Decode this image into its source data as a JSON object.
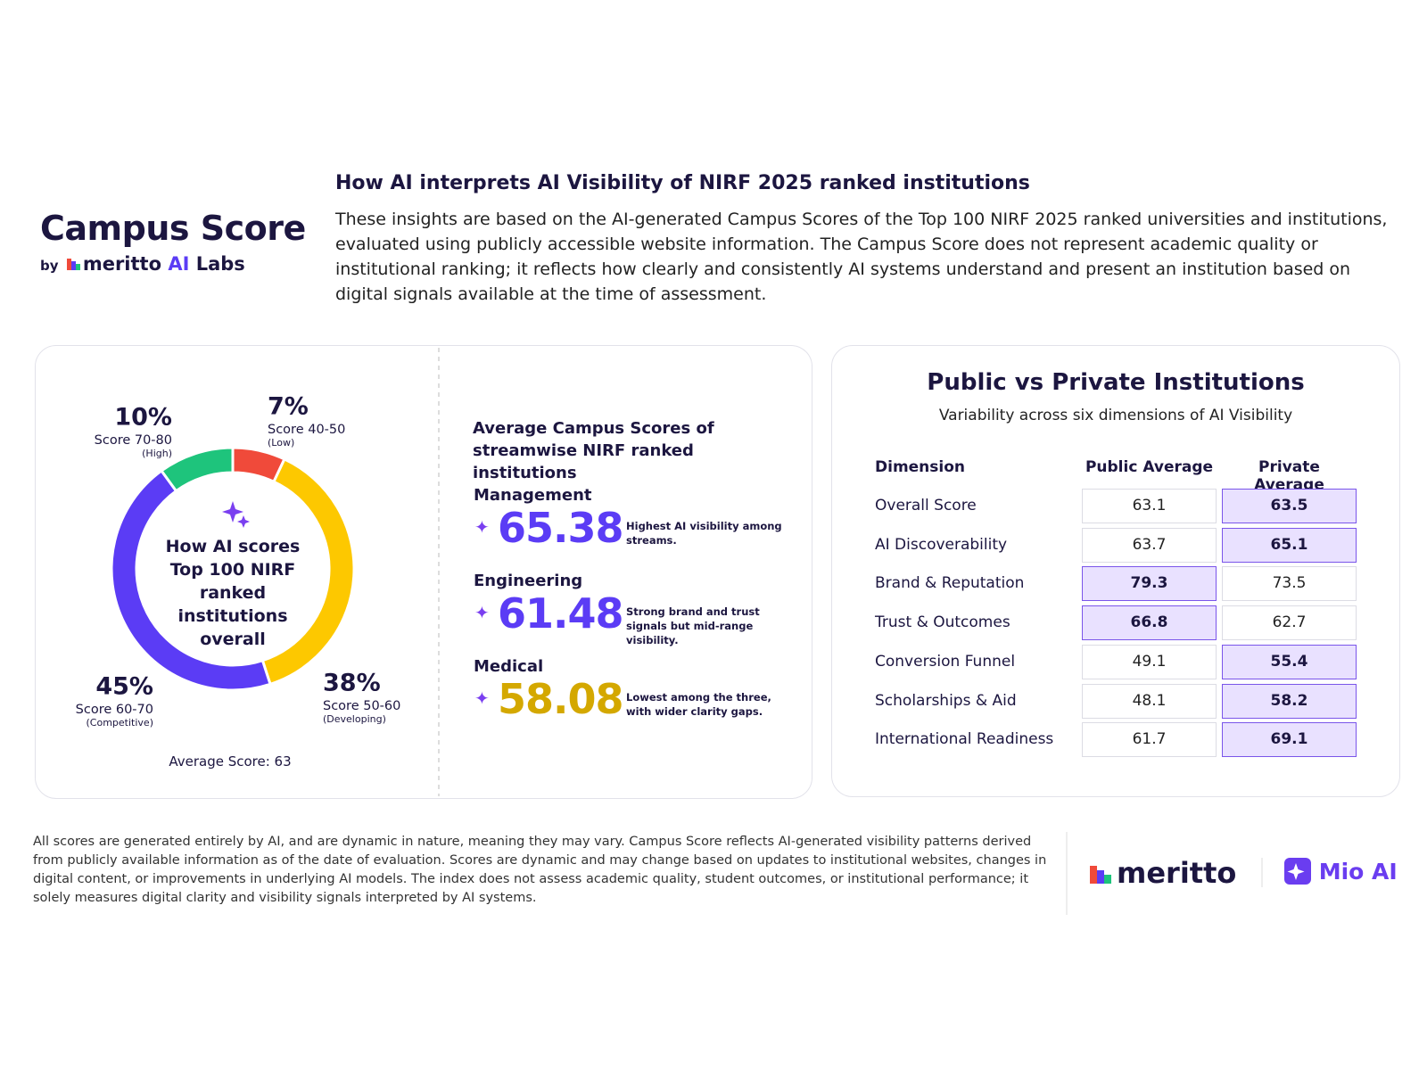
{
  "header": {
    "title": "Campus Score",
    "byline": "by",
    "brand": "meritto",
    "brand_ai": "AI",
    "brand_labs": "Labs",
    "heading": "How AI interprets AI Visibility of NIRF 2025 ranked institutions",
    "description": "These insights are based on the AI-generated Campus Scores of the Top 100 NIRF 2025 ranked universities and institutions, evaluated using publicly accessible website information. The Campus Score does not represent academic quality or institutional ranking; it reflects how clearly and consistently AI systems understand and present an institution based on digital signals available at the time of assessment."
  },
  "chart_data": {
    "type": "pie",
    "center_text_lines": [
      "How AI scores",
      "Top 100 NIRF ranked",
      "institutions overall"
    ],
    "categories": [
      "Score 40-50",
      "Score 50-60",
      "Score 60-70",
      "Score 70-80"
    ],
    "category_notes": [
      "(Low)",
      "(Developing)",
      "(Competitive)",
      "(High)"
    ],
    "values": [
      7,
      38,
      45,
      10
    ],
    "value_labels": [
      "7%",
      "38%",
      "45%",
      "10%"
    ],
    "colors": [
      "#f04a3a",
      "#fdc800",
      "#5b3cf5",
      "#1ec47c"
    ],
    "footer": "Average Score: 63"
  },
  "streams": {
    "heading": "Average Campus Scores of streamwise NIRF ranked institutions",
    "items": [
      {
        "name": "Management",
        "score": "65.38",
        "note": "Highest AI visibility among streams.",
        "color": "#5b3cf5"
      },
      {
        "name": "Engineering",
        "score": "61.48",
        "note": "Strong brand and trust signals but mid-range visibility.",
        "color": "#5b3cf5"
      },
      {
        "name": "Medical",
        "score": "58.08",
        "note": "Lowest among the three, with wider clarity gaps.",
        "color": "#d4a800"
      }
    ]
  },
  "table": {
    "title": "Public vs Private Institutions",
    "subtitle": "Variability across six dimensions of AI Visibility",
    "columns": [
      "Dimension",
      "Public Average",
      "Private Average"
    ],
    "rows": [
      [
        "Overall Score",
        63.1,
        63.5
      ],
      [
        "AI Discoverability",
        63.7,
        65.1
      ],
      [
        "Brand & Reputation",
        79.3,
        73.5
      ],
      [
        "Trust & Outcomes",
        66.8,
        62.7
      ],
      [
        "Conversion Funnel",
        49.1,
        55.4
      ],
      [
        "Scholarships & Aid",
        48.1,
        58.2
      ],
      [
        "International Readiness",
        61.7,
        69.1
      ]
    ]
  },
  "footer": {
    "disclaimer": "All scores are generated entirely by AI, and are dynamic in nature, meaning they may vary. Campus Score reflects AI-generated visibility patterns derived from publicly available information as of the date of evaluation. Scores are dynamic and may change based on updates to institutional websites, changes in digital content, or improvements in underlying AI models. The index does not assess academic quality, student outcomes, or institutional performance; it solely measures digital clarity and visibility signals interpreted by AI systems.",
    "logo_left": "meritto",
    "logo_right": "Mio AI"
  }
}
